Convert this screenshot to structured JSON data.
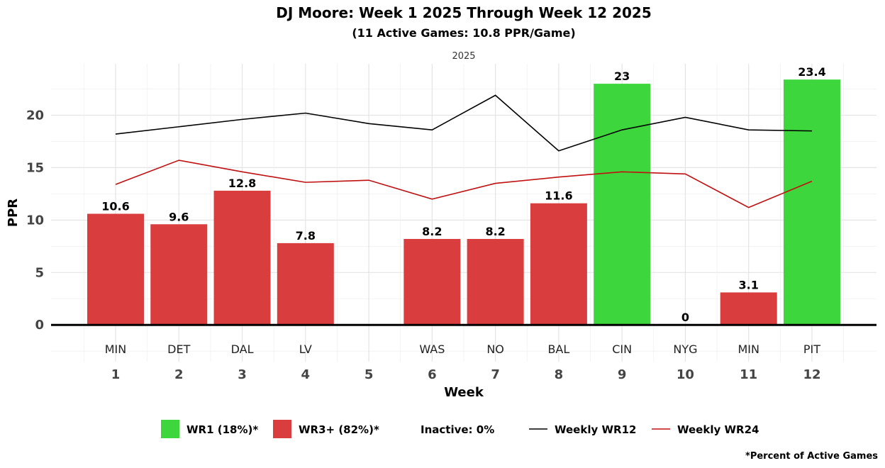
{
  "chart_data": {
    "type": "bar",
    "title": "DJ Moore: Week 1 2025 Through Week 12 2025",
    "subtitle": "(11 Active Games: 10.8 PPR/Game)",
    "facet_label": "2025",
    "xlabel": "Week",
    "ylabel": "PPR",
    "ylim": [
      -3.5,
      24.9
    ],
    "yticks": [
      0,
      5,
      10,
      15,
      20
    ],
    "weeks": [
      1,
      2,
      3,
      4,
      5,
      6,
      7,
      8,
      9,
      10,
      11,
      12
    ],
    "opponents": [
      "MIN",
      "DET",
      "DAL",
      "LV",
      "",
      "WAS",
      "NO",
      "BAL",
      "CIN",
      "NYG",
      "MIN",
      "PIT"
    ],
    "values": [
      10.6,
      9.6,
      12.8,
      7.8,
      null,
      8.2,
      8.2,
      11.6,
      23,
      0,
      3.1,
      23.4
    ],
    "labels": [
      "10.6",
      "9.6",
      "12.8",
      "7.8",
      "",
      "8.2",
      "8.2",
      "11.6",
      "23",
      "0",
      "3.1",
      "23.4"
    ],
    "tiers": [
      "WR3+",
      "WR3+",
      "WR3+",
      "WR3+",
      "",
      "WR3+",
      "WR3+",
      "WR3+",
      "WR1",
      "WR3+",
      "WR3+",
      "WR1"
    ],
    "colors": {
      "WR1": "#3dd63d",
      "WR3+": "#d93d3d",
      "WR12": "#000000",
      "WR24": "#c01010"
    },
    "lines": [
      {
        "name": "Weekly WR12",
        "values": [
          18.2,
          18.9,
          19.6,
          20.2,
          19.2,
          18.6,
          21.9,
          16.6,
          18.6,
          19.8,
          18.6,
          18.5
        ]
      },
      {
        "name": "Weekly WR24",
        "values": [
          13.4,
          15.7,
          14.6,
          13.6,
          13.8,
          12.0,
          13.5,
          14.1,
          14.6,
          14.4,
          11.2,
          13.7
        ]
      }
    ],
    "grid": true,
    "legend": {
      "placement": "bottom",
      "items": [
        "WR1 (18%)*",
        "WR3+ (82%)*",
        "Inactive: 0%",
        "Weekly WR12",
        "Weekly WR24"
      ]
    },
    "footnote": "*Percent of Active Games"
  }
}
